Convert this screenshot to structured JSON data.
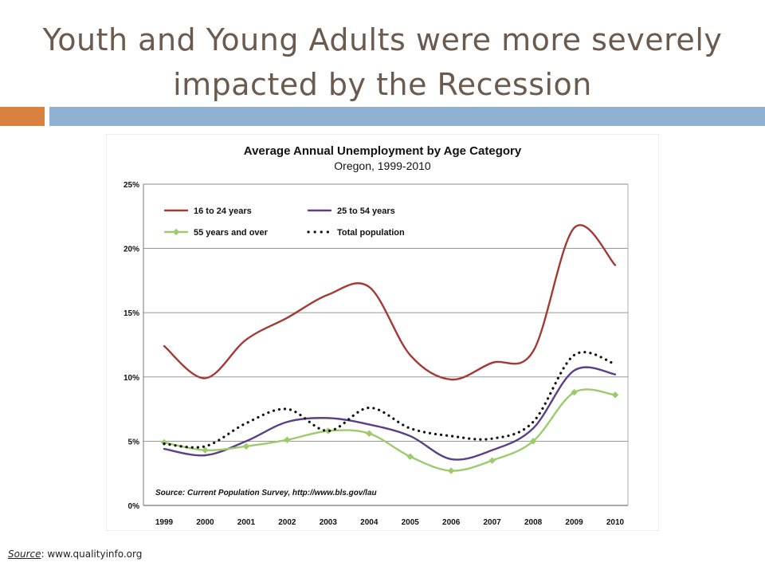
{
  "slide": {
    "title_line1": "Youth and Young Adults were more severely",
    "title_line2": "impacted by the Recession",
    "accent_color": "#d9823f",
    "bar_color": "#8fb2d3"
  },
  "footer": {
    "source_label": "Source",
    "source_sep": ":",
    "source_text": "www.qualityinfo.org"
  },
  "chart_data": {
    "type": "line",
    "title": "Average Annual Unemployment by Age Category",
    "subtitle": "Oregon, 1999-2010",
    "xlabel": "",
    "ylabel": "",
    "x": [
      "1999",
      "2000",
      "2001",
      "2002",
      "2003",
      "2004",
      "2005",
      "2006",
      "2007",
      "2008",
      "2009",
      "2010"
    ],
    "ylim": [
      0,
      25
    ],
    "yticks": [
      "0%",
      "5%",
      "10%",
      "15%",
      "20%",
      "25%"
    ],
    "grid": true,
    "legend_position": "top-left",
    "series": [
      {
        "name": "16 to 24 years",
        "color": "#a33a34",
        "style": "solid",
        "values": [
          12.4,
          9.9,
          12.9,
          14.6,
          16.4,
          17.0,
          11.7,
          9.8,
          11.1,
          12.0,
          21.6,
          18.7
        ]
      },
      {
        "name": "25 to 54 years",
        "color": "#5b3f87",
        "style": "solid",
        "values": [
          4.4,
          3.9,
          5.0,
          6.5,
          6.8,
          6.3,
          5.4,
          3.6,
          4.3,
          6.0,
          10.5,
          10.2
        ]
      },
      {
        "name": "55 years and over",
        "color": "#9dcb6b",
        "style": "solid-markers",
        "values": [
          4.9,
          4.3,
          4.6,
          5.1,
          5.8,
          5.6,
          3.8,
          2.7,
          3.5,
          5.0,
          8.8,
          8.6
        ]
      },
      {
        "name": "Total population",
        "color": "#111111",
        "style": "dotted",
        "values": [
          4.8,
          4.6,
          6.4,
          7.5,
          5.8,
          7.6,
          6.0,
          5.4,
          5.2,
          6.5,
          11.7,
          11.0
        ]
      }
    ],
    "annotation": "Source:  Current Population Survey, http://www.bls.gov/lau"
  }
}
